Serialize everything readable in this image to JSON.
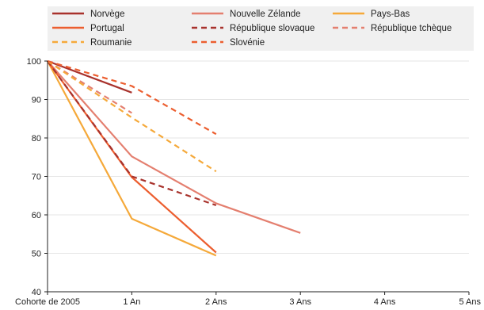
{
  "chart_data": {
    "type": "line",
    "title": "",
    "xlabel": "",
    "ylabel": "",
    "categories": [
      "Cohorte de 2005",
      "1 An",
      "2 Ans",
      "3 Ans",
      "4 Ans",
      "5 Ans"
    ],
    "ylim": [
      40,
      100
    ],
    "yticks": [
      40,
      50,
      60,
      70,
      80,
      90,
      100
    ],
    "grid": "horizontal",
    "legend_position": "top",
    "series": [
      {
        "name": "Norvège",
        "color": "#a8322c",
        "dash": "solid",
        "values": [
          100,
          91.8,
          null,
          null,
          null,
          null
        ]
      },
      {
        "name": "Nouvelle Zélande",
        "color": "#e47f6f",
        "dash": "solid",
        "values": [
          100,
          75.2,
          63.0,
          55.3,
          null,
          null
        ]
      },
      {
        "name": "Pays-Bas",
        "color": "#f5a93a",
        "dash": "solid",
        "values": [
          100,
          59.0,
          49.4,
          null,
          null,
          null
        ]
      },
      {
        "name": "Portugal",
        "color": "#ec5e2f",
        "dash": "solid",
        "values": [
          100,
          69.8,
          50.2,
          null,
          null,
          null
        ]
      },
      {
        "name": "République slovaque",
        "color": "#a8322c",
        "dash": "dashed",
        "values": [
          100,
          70.0,
          62.5,
          null,
          null,
          null
        ]
      },
      {
        "name": "République tchèque",
        "color": "#e47f6f",
        "dash": "dashed",
        "values": [
          100,
          86.5,
          null,
          null,
          null,
          null
        ]
      },
      {
        "name": "Roumanie",
        "color": "#f5a93a",
        "dash": "dashed",
        "values": [
          100,
          85.3,
          71.3,
          null,
          null,
          null
        ]
      },
      {
        "name": "Slovénie",
        "color": "#ec5e2f",
        "dash": "dashed",
        "values": [
          100,
          93.5,
          81.0,
          null,
          null,
          null
        ]
      }
    ]
  }
}
